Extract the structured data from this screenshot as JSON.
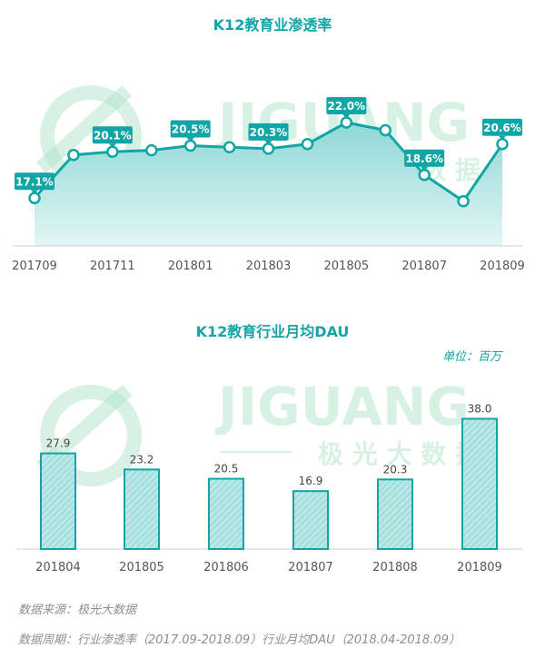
{
  "watermark": {
    "brand": "JIGUANG",
    "subtitle": "极 光 大 数 据"
  },
  "colors": {
    "accent": "#12a5a5",
    "fill_light": "#d3f0ef",
    "fill_dark": "#7fd4d3",
    "watermark": "#b8e6cf"
  },
  "chart_data": [
    {
      "type": "line",
      "title": "K12教育业渗透率",
      "x": [
        "201709",
        "201710",
        "201711",
        "201712",
        "201801",
        "201802",
        "201803",
        "201804",
        "201805",
        "201806",
        "201807",
        "201808",
        "201809"
      ],
      "xtick_labels": [
        "201709",
        "201711",
        "201801",
        "201803",
        "201805",
        "201807",
        "201809"
      ],
      "series": [
        {
          "values": [
            17.1,
            19.9,
            20.1,
            20.2,
            20.5,
            20.4,
            20.3,
            20.6,
            22.0,
            21.5,
            18.6,
            16.9,
            20.6
          ]
        }
      ],
      "data_labels": {
        "201709": "17.1%",
        "201711": "20.1%",
        "201801": "20.5%",
        "201803": "20.3%",
        "201805": "22.0%",
        "201807": "18.6%",
        "201809": "20.6%"
      },
      "ylim": [
        0,
        40
      ],
      "area_fill": true,
      "grid": false
    },
    {
      "type": "bar",
      "title": "K12教育行业月均DAU",
      "unit_label": "单位：百万",
      "categories": [
        "201804",
        "201805",
        "201806",
        "201807",
        "201808",
        "201809"
      ],
      "values": [
        27.9,
        23.2,
        20.5,
        16.9,
        20.3,
        38.0
      ],
      "value_labels": [
        "27.9",
        "23.2",
        "20.5",
        "16.9",
        "20.3",
        "38.0"
      ],
      "ylim": [
        0,
        45
      ],
      "grid": false
    }
  ],
  "footer": {
    "source": "数据来源：极光大数据",
    "period": "数据周期：行业渗透率（2017.09-2018.09）行业月均DAU（2018.04-2018.09）"
  }
}
